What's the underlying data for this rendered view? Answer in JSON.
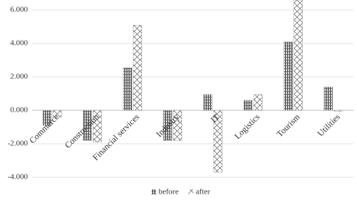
{
  "chart_data": {
    "type": "bar",
    "categories": [
      "Commerce",
      "Construction",
      "Financial services",
      "Industry",
      "IT",
      "Logistics",
      "Tourism",
      "Utilities"
    ],
    "series": [
      {
        "name": "before",
        "color": "#555555",
        "values": [
          -0.9,
          -1.8,
          2.55,
          -1.8,
          0.95,
          0.6,
          4.1,
          1.4
        ]
      },
      {
        "name": "after",
        "color": "#777777",
        "values": [
          -0.4,
          -1.9,
          5.1,
          -1.8,
          -3.7,
          0.95,
          6.6,
          -0.05
        ]
      }
    ],
    "ylim": [
      -4,
      6.6
    ],
    "yticks": [
      {
        "value": -4,
        "label": "-4.000"
      },
      {
        "value": -2,
        "label": "-2.000"
      },
      {
        "value": 0,
        "label": "0.000"
      },
      {
        "value": 2,
        "label": "2.000"
      },
      {
        "value": 4,
        "label": "4.000"
      },
      {
        "value": 6,
        "label": "6.000"
      }
    ],
    "grid": true,
    "legend": "bottom"
  }
}
